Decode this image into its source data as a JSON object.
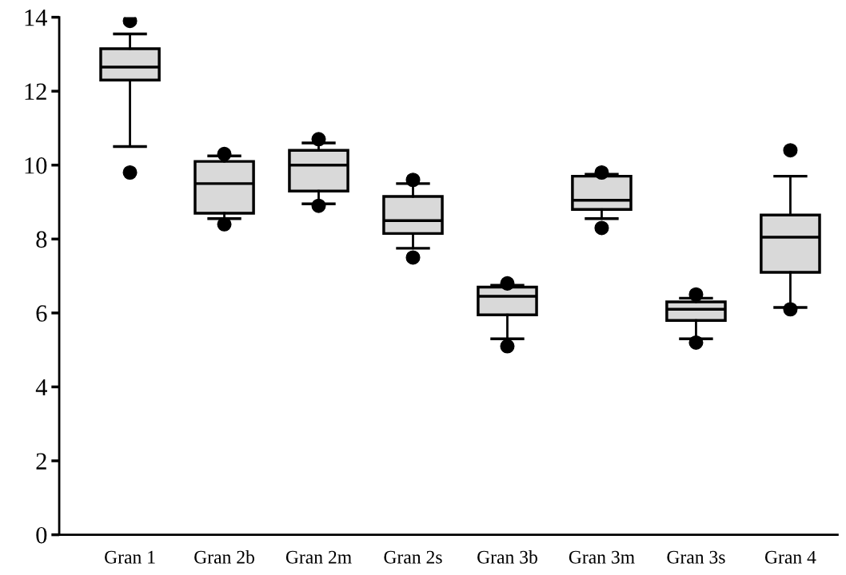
{
  "chart_data": {
    "type": "box",
    "categories": [
      "Gran 1",
      "Gran 2b",
      "Gran 2m",
      "Gran 2s",
      "Gran 3b",
      "Gran 3m",
      "Gran 3s",
      "Gran 4"
    ],
    "color": "#d9d9d9",
    "boxes": [
      {
        "low": 10.5,
        "q1": 12.3,
        "median": 12.65,
        "q3": 13.15,
        "high": 13.55,
        "outliers": [
          13.9,
          9.8
        ]
      },
      {
        "low": 8.55,
        "q1": 8.7,
        "median": 9.5,
        "q3": 10.1,
        "high": 10.25,
        "outliers": [
          10.3,
          8.4
        ]
      },
      {
        "low": 8.95,
        "q1": 9.3,
        "median": 10.0,
        "q3": 10.4,
        "high": 10.6,
        "outliers": [
          10.7,
          8.9
        ]
      },
      {
        "low": 7.75,
        "q1": 8.15,
        "median": 8.5,
        "q3": 9.15,
        "high": 9.5,
        "outliers": [
          9.6,
          7.5
        ]
      },
      {
        "low": 5.3,
        "q1": 5.95,
        "median": 6.45,
        "q3": 6.7,
        "high": 6.75,
        "outliers": [
          6.8,
          5.1
        ]
      },
      {
        "low": 8.55,
        "q1": 8.8,
        "median": 9.05,
        "q3": 9.7,
        "high": 9.75,
        "outliers": [
          9.8,
          8.3
        ]
      },
      {
        "low": 5.3,
        "q1": 5.8,
        "median": 6.1,
        "q3": 6.3,
        "high": 6.4,
        "outliers": [
          6.5,
          5.2
        ]
      },
      {
        "low": 6.15,
        "q1": 7.1,
        "median": 8.05,
        "q3": 8.65,
        "high": 9.7,
        "outliers": [
          10.4,
          6.1
        ]
      }
    ],
    "ylim": [
      0,
      14
    ],
    "yticks": [
      0,
      2,
      4,
      6,
      8,
      10,
      12,
      14
    ],
    "grid": false
  }
}
